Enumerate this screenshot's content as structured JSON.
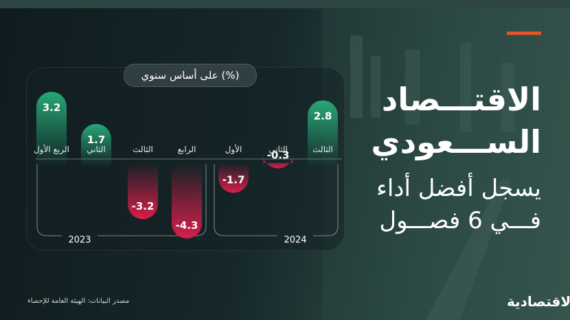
{
  "headline": {
    "line1": "الاقتـــصاد",
    "line2": "الســـعودي",
    "line3": "يسجل أفضل أداء",
    "line4": "فـــي 6 فصـــول"
  },
  "colors": {
    "positive": "#27a877",
    "negative": "#d81e4a",
    "accent": "#e0552a"
  },
  "source": "مصدر البيانات: الهيئة العامة للإحصاء",
  "logo": "الاقتصادية",
  "chart_data": {
    "type": "bar",
    "unit_label": "(%) على أساس سنوي",
    "categories": [
      "الربع الأول",
      "الثاني",
      "الثالث",
      "الرابع",
      "الأول",
      "الثاني",
      "الثالث"
    ],
    "years": [
      "2023",
      "2024"
    ],
    "series": [
      {
        "values": [
          3.2,
          1.7,
          -3.2,
          -4.3,
          -1.7,
          -0.3,
          2.8
        ]
      }
    ],
    "value_labels": [
      "3.2",
      "1.7",
      "-3.2",
      "-4.3",
      "-1.7",
      "-0.3",
      "2.8"
    ],
    "ylim": [
      -4.3,
      3.2
    ]
  }
}
